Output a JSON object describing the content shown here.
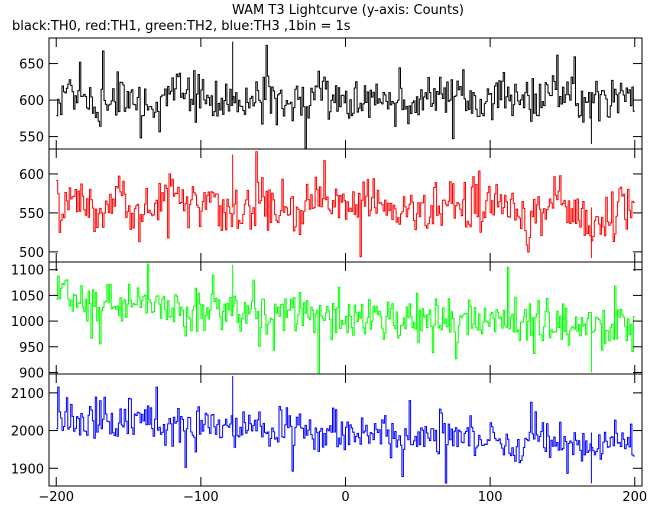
{
  "chart_data": {
    "type": "line",
    "title": "WAM T3 Lightcurve (y-axis: Counts)",
    "subtitle": "black:TH0, red:TH1, green:TH2, blue:TH3 ,1bin = 1s",
    "xlabel": "",
    "ylabel": "",
    "xlim": [
      -205,
      205
    ],
    "x_ticks": [
      -200,
      -100,
      0,
      100,
      200
    ],
    "x_tick_labels": [
      "−200",
      "−100",
      "0",
      "100",
      "200"
    ],
    "x_range": [
      -200,
      200
    ],
    "grid": false,
    "legend": "none",
    "panels": [
      {
        "name": "TH0",
        "color": "#000000",
        "ylim": [
          533,
          685
        ],
        "y_ticks": [
          550,
          600,
          650
        ],
        "y_tick_labels": [
          "550",
          "600",
          "650"
        ],
        "values_sampled": [
          597,
          612,
          590,
          608,
          603,
          585,
          620,
          598,
          605,
          593,
          610,
          600,
          588,
          615,
          602,
          596,
          607,
          591,
          604,
          599,
          611,
          594,
          606,
          601,
          589,
          613,
          598,
          603,
          595,
          608
        ],
        "mean": 600,
        "noise_amplitude": 42,
        "y_peak": 680,
        "y_dip": 540
      },
      {
        "name": "TH1",
        "color": "#ff0000",
        "ylim": [
          487,
          632
        ],
        "y_ticks": [
          500,
          550,
          600
        ],
        "y_tick_labels": [
          "500",
          "550",
          "600"
        ],
        "values_sampled": [
          558,
          565,
          552,
          570,
          548,
          560,
          575,
          555,
          562,
          550,
          568,
          557,
          545,
          572,
          560,
          553,
          566,
          549,
          561,
          556,
          570,
          543,
          563,
          558,
          547,
          567,
          552,
          540,
          555,
          560
        ],
        "mean": 557,
        "noise_amplitude": 42,
        "y_peak": 625,
        "y_dip": 492
      },
      {
        "name": "TH2",
        "color": "#00ff00",
        "ylim": [
          897,
          1115
        ],
        "y_ticks": [
          900,
          950,
          1000,
          1050,
          1100
        ],
        "y_tick_labels": [
          "900",
          "950",
          "1000",
          "1050",
          "1100"
        ],
        "values_sampled": [
          1050,
          1042,
          1035,
          1040,
          1030,
          1028,
          1022,
          1025,
          1018,
          1020,
          1015,
          1012,
          1016,
          1010,
          1008,
          1005,
          1010,
          1003,
          1000,
          1004,
          998,
          1002,
          995,
          999,
          993,
          997,
          990,
          994,
          988,
          985
        ],
        "mean": 1010,
        "noise_amplitude": 55,
        "y_peak": 1110,
        "y_dip": 900
      },
      {
        "name": "TH3",
        "color": "#0000ff",
        "ylim": [
          1853,
          2150
        ],
        "y_ticks": [
          1900,
          2000,
          2100
        ],
        "y_tick_labels": [
          "1900",
          "2000",
          "2100"
        ],
        "values_sampled": [
          2030,
          2025,
          2040,
          2020,
          2035,
          2015,
          2022,
          2010,
          2018,
          2005,
          2012,
          2000,
          2008,
          1995,
          2002,
          1990,
          1998,
          1985,
          1995,
          1980,
          1990,
          1975,
          1985,
          1970,
          1980,
          1965,
          1975,
          1960,
          1970,
          1955
        ],
        "mean": 1995,
        "noise_amplitude": 75,
        "y_peak": 2145,
        "y_dip": 1860
      }
    ]
  }
}
